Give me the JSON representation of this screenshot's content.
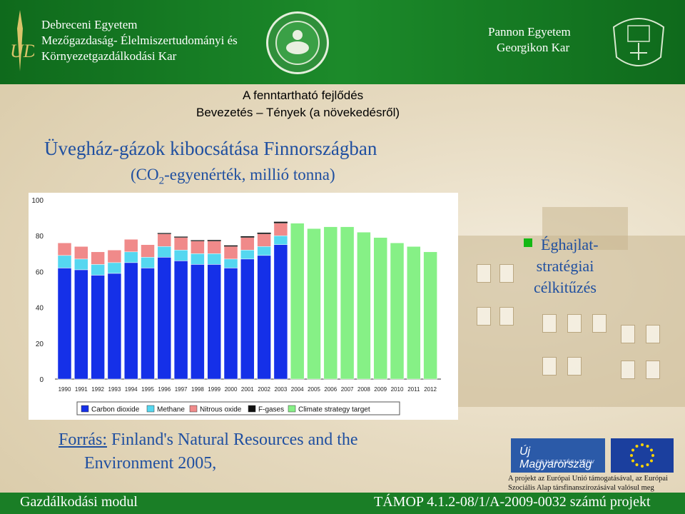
{
  "header": {
    "left_university": [
      "Debreceni Egyetem",
      "Mezőgazdaság- Élelmiszertudományi és",
      "Környezetgazdálkodási Kar"
    ],
    "right_university": [
      "Pannon Egyetem",
      "Georgikon Kar"
    ],
    "left_logo_letters": "UD",
    "colors": {
      "header_green": "#1c8a2a",
      "text_white": "#ffffff"
    }
  },
  "heading": {
    "line1": "A fenntartható fejlődés",
    "line2": "Bevezetés – Tények (a növekedésről)"
  },
  "title": "Üvegház-gázok kibocsátása Finnországban",
  "subtitle": {
    "pre": "(CO",
    "sub": "2",
    "post": "-egyenérték, millió tonna)"
  },
  "annotation": [
    "Éghajlat-",
    "stratégiai",
    "célkitűzés"
  ],
  "source": {
    "label": "Forrás:",
    "line1_rest": " Finland's Natural Resources and the",
    "line2": "Environment 2005,"
  },
  "eu": {
    "umft_label": "Új Magyarország",
    "umft_sub": "FEJLESZTÉSI TERV",
    "note": "A projekt az Európai Unió támogatásával, az Európai Szociális Alap társfinanszírozásával valósul meg"
  },
  "footer": {
    "left": "Gazdálkodási modul",
    "right": "TÁMOP 4.1.2-08/1/A-2009-0032 számú projekt"
  },
  "chart_data": {
    "type": "bar",
    "stacked": true,
    "categories": [
      "1990",
      "1991",
      "1992",
      "1993",
      "1994",
      "1995",
      "1996",
      "1997",
      "1998",
      "1999",
      "2000",
      "2001",
      "2002",
      "2003",
      "2004",
      "2005",
      "2006",
      "2007",
      "2008",
      "2009",
      "2010",
      "2011",
      "2012"
    ],
    "series": [
      {
        "name": "Carbon dioxide",
        "color": "#1530e8",
        "values": [
          62,
          61,
          58,
          59,
          65,
          62,
          68,
          66,
          64,
          64,
          62,
          67,
          69,
          75,
          null,
          null,
          null,
          null,
          null,
          null,
          null,
          null,
          null
        ]
      },
      {
        "name": "Methane",
        "color": "#55d7f0",
        "values": [
          7,
          6,
          6,
          6,
          6,
          6,
          6,
          6,
          6,
          6,
          5,
          5,
          5,
          5,
          null,
          null,
          null,
          null,
          null,
          null,
          null,
          null,
          null
        ]
      },
      {
        "name": "Nitrous oxide",
        "color": "#f08a8a",
        "values": [
          7,
          7,
          7,
          7,
          7,
          7,
          7,
          7,
          7,
          7,
          7,
          7,
          7,
          7,
          null,
          null,
          null,
          null,
          null,
          null,
          null,
          null,
          null
        ]
      },
      {
        "name": "F-gases",
        "color": "#111111",
        "values": [
          0,
          0,
          0,
          0,
          0,
          0,
          0.5,
          0.5,
          0.5,
          0.6,
          0.6,
          0.7,
          0.7,
          0.8,
          null,
          null,
          null,
          null,
          null,
          null,
          null,
          null,
          null
        ]
      },
      {
        "name": "Climate strategy target",
        "color": "#86f086",
        "values": [
          null,
          null,
          null,
          null,
          null,
          null,
          null,
          null,
          null,
          null,
          null,
          null,
          null,
          null,
          87,
          84,
          85,
          85,
          82,
          79,
          76,
          74,
          71
        ]
      }
    ],
    "yticks": [
      "0",
      "20",
      "40",
      "60",
      "80",
      "100"
    ],
    "ylim": [
      0,
      100
    ],
    "grid": false,
    "legend_position": "bottom"
  }
}
